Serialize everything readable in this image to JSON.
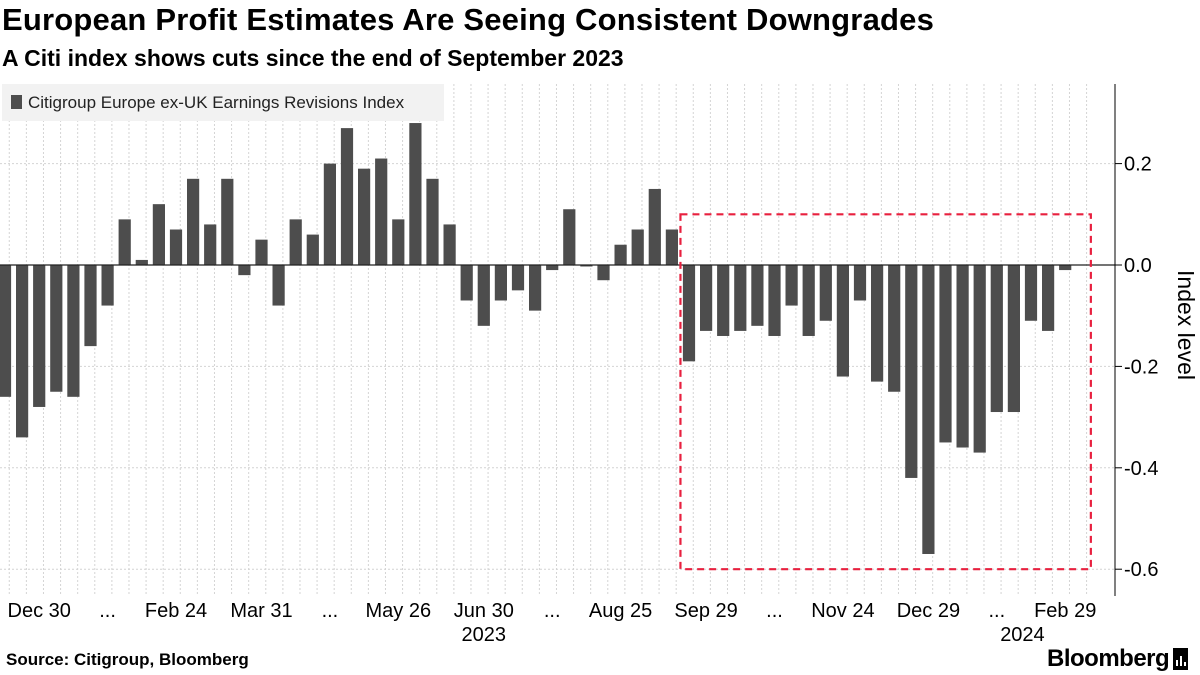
{
  "header": {
    "title": "European Profit Estimates Are Seeing Consistent Downgrades",
    "subtitle": "A Citi index shows cuts since the end of September 2023"
  },
  "footer": {
    "source": "Source: Citigroup, Bloomberg",
    "brand": "Bloomberg"
  },
  "colors": {
    "bar": "#4d4d4d",
    "grid": "#d4d4d4",
    "highlight": "#e8203f",
    "legend_bg": "#f2f2f2",
    "axis": "#000000"
  },
  "chart_data": {
    "type": "bar",
    "title": "European Profit Estimates Are Seeing Consistent Downgrades",
    "subtitle": "A Citi index shows cuts since the end of September 2023",
    "legend": "Citigroup Europe ex-UK Earnings Revisions Index",
    "legend_position": "top-left",
    "ylabel": "Index level",
    "xlabel": "",
    "ylim": [
      -0.65,
      0.35
    ],
    "yticks": [
      0.2,
      0.0,
      -0.2,
      -0.4,
      -0.6
    ],
    "ytick_labels": [
      "0.2",
      "0.0",
      "-0.2",
      "-0.4",
      "-0.6"
    ],
    "grid": true,
    "xtick_labels": [
      {
        "index": 2,
        "label": "Dec 30"
      },
      {
        "index": 6,
        "label": "..."
      },
      {
        "index": 10,
        "label": "Feb 24"
      },
      {
        "index": 15,
        "label": "Mar 31"
      },
      {
        "index": 19,
        "label": "..."
      },
      {
        "index": 23,
        "label": "May 26"
      },
      {
        "index": 28,
        "label": "Jun 30"
      },
      {
        "index": 32,
        "label": "..."
      },
      {
        "index": 36,
        "label": "Aug 25"
      },
      {
        "index": 41,
        "label": "Sep 29"
      },
      {
        "index": 45,
        "label": "..."
      },
      {
        "index": 49,
        "label": "Nov 24"
      },
      {
        "index": 54,
        "label": "Dec 29"
      },
      {
        "index": 58,
        "label": "..."
      },
      {
        "index": 62,
        "label": "Feb 29"
      }
    ],
    "year_labels": [
      {
        "index": 28,
        "label": "2023"
      },
      {
        "index": 59.5,
        "label": "2024"
      }
    ],
    "highlight_range": {
      "start_index": 39.5,
      "end_index": 63.5,
      "ymin": -0.6,
      "ymax": 0.1,
      "style": "dashed"
    },
    "values": [
      -0.26,
      -0.34,
      -0.28,
      -0.25,
      -0.26,
      -0.16,
      -0.08,
      0.09,
      0.01,
      0.12,
      0.07,
      0.17,
      0.08,
      0.17,
      -0.02,
      0.05,
      -0.08,
      0.09,
      0.06,
      0.2,
      0.27,
      0.19,
      0.21,
      0.09,
      0.28,
      0.17,
      0.08,
      -0.07,
      -0.12,
      -0.07,
      -0.05,
      -0.09,
      -0.01,
      0.11,
      0.0,
      -0.03,
      0.04,
      0.07,
      0.15,
      0.07,
      -0.19,
      -0.13,
      -0.14,
      -0.13,
      -0.12,
      -0.14,
      -0.08,
      -0.14,
      -0.11,
      -0.22,
      -0.07,
      -0.23,
      -0.25,
      -0.42,
      -0.57,
      -0.35,
      -0.36,
      -0.37,
      -0.29,
      -0.29,
      -0.11,
      -0.13,
      -0.01
    ]
  }
}
